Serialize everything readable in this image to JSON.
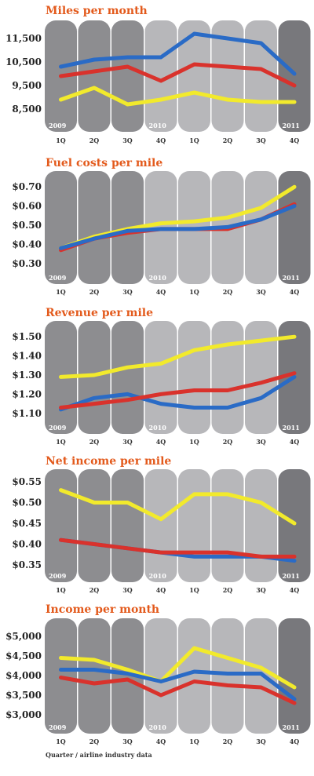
{
  "colors": {
    "title": "#e35a1c",
    "pill_dark": "#8d8d90",
    "pill_light": "#b7b7ba",
    "pill_darkest": "#78787c",
    "blue": "#2a6bc6",
    "red": "#d9322c",
    "yellow": "#f2ea2c"
  },
  "quarters": [
    "1Q",
    "2Q",
    "3Q",
    "4Q",
    "1Q",
    "2Q",
    "3Q",
    "4Q"
  ],
  "year_labels": [
    "2009",
    "2010",
    "2011"
  ],
  "footnote": "Quarter / airline industry data",
  "chart_data": [
    {
      "type": "line",
      "title": "Miles per month",
      "categories": [
        "1Q",
        "2Q",
        "3Q",
        "4Q",
        "1Q",
        "2Q",
        "3Q",
        "4Q"
      ],
      "ylim": [
        8000,
        12000
      ],
      "yticks": [
        8500,
        9500,
        10500,
        11500
      ],
      "ytick_labels": [
        "8,500",
        "9,500",
        "10,500",
        "11,500"
      ],
      "series": [
        {
          "color": "blue",
          "values": [
            10300,
            10600,
            10700,
            10700,
            11700,
            11500,
            11300,
            10000
          ]
        },
        {
          "color": "red",
          "values": [
            9900,
            10100,
            10300,
            9700,
            10400,
            10300,
            10200,
            9500
          ]
        },
        {
          "color": "yellow",
          "values": [
            8900,
            9400,
            8700,
            8900,
            9200,
            8900,
            8800,
            8800
          ]
        }
      ]
    },
    {
      "type": "line",
      "title": "Fuel costs per mile",
      "categories": [
        "1Q",
        "2Q",
        "3Q",
        "4Q",
        "1Q",
        "2Q",
        "3Q",
        "4Q"
      ],
      "ylim": [
        0.25,
        0.75
      ],
      "yticks": [
        0.3,
        0.4,
        0.5,
        0.6,
        0.7
      ],
      "ytick_labels": [
        "$0.30",
        "$0.40",
        "$0.50",
        "$0.60",
        "$0.70"
      ],
      "series": [
        {
          "color": "yellow",
          "values": [
            0.38,
            0.44,
            0.48,
            0.51,
            0.52,
            0.54,
            0.59,
            0.7
          ]
        },
        {
          "color": "red",
          "values": [
            0.37,
            0.43,
            0.46,
            0.48,
            0.48,
            0.48,
            0.53,
            0.61
          ]
        },
        {
          "color": "blue",
          "values": [
            0.38,
            0.43,
            0.47,
            0.48,
            0.48,
            0.49,
            0.53,
            0.6
          ]
        }
      ]
    },
    {
      "type": "line",
      "title": "Revenue per mile",
      "categories": [
        "1Q",
        "2Q",
        "3Q",
        "4Q",
        "1Q",
        "2Q",
        "3Q",
        "4Q"
      ],
      "ylim": [
        1.05,
        1.55
      ],
      "yticks": [
        1.1,
        1.2,
        1.3,
        1.4,
        1.5
      ],
      "ytick_labels": [
        "$1.10",
        "$1.20",
        "$1.30",
        "$1.40",
        "$1.50"
      ],
      "series": [
        {
          "color": "yellow",
          "values": [
            1.29,
            1.3,
            1.34,
            1.36,
            1.43,
            1.46,
            1.48,
            1.5
          ]
        },
        {
          "color": "blue",
          "values": [
            1.12,
            1.18,
            1.2,
            1.15,
            1.13,
            1.13,
            1.18,
            1.29
          ]
        },
        {
          "color": "red",
          "values": [
            1.13,
            1.15,
            1.17,
            1.2,
            1.22,
            1.22,
            1.26,
            1.31
          ]
        }
      ]
    },
    {
      "type": "line",
      "title": "Net income per mile",
      "categories": [
        "1Q",
        "2Q",
        "3Q",
        "4Q",
        "1Q",
        "2Q",
        "3Q",
        "4Q"
      ],
      "ylim": [
        0.335,
        0.565
      ],
      "yticks": [
        0.35,
        0.4,
        0.45,
        0.5,
        0.55
      ],
      "ytick_labels": [
        "$0.35",
        "$0.40",
        "$0.45",
        "$0.50",
        "$0.55"
      ],
      "series": [
        {
          "color": "yellow",
          "values": [
            0.53,
            0.5,
            0.5,
            0.46,
            0.52,
            0.52,
            0.5,
            0.45
          ]
        },
        {
          "color": "blue",
          "values": [
            0.41,
            0.4,
            0.39,
            0.38,
            0.37,
            0.37,
            0.37,
            0.36
          ]
        },
        {
          "color": "red",
          "values": [
            0.41,
            0.4,
            0.39,
            0.38,
            0.38,
            0.38,
            0.37,
            0.37
          ]
        }
      ]
    },
    {
      "type": "line",
      "title": "Income per month",
      "categories": [
        "1Q",
        "2Q",
        "3Q",
        "4Q",
        "1Q",
        "2Q",
        "3Q",
        "4Q"
      ],
      "ylim": [
        2800,
        5300
      ],
      "yticks": [
        3000,
        3500,
        4000,
        4500,
        5000
      ],
      "ytick_labels": [
        "$3,000",
        "$3,500",
        "$4,000",
        "$4,500",
        "$5,000"
      ],
      "series": [
        {
          "color": "yellow",
          "values": [
            4450,
            4400,
            4150,
            3850,
            4700,
            4450,
            4200,
            3700
          ]
        },
        {
          "color": "blue",
          "values": [
            4150,
            4150,
            4050,
            3850,
            4100,
            4050,
            4050,
            3400
          ]
        },
        {
          "color": "red",
          "values": [
            3950,
            3800,
            3900,
            3500,
            3850,
            3750,
            3700,
            3300
          ]
        }
      ]
    }
  ]
}
